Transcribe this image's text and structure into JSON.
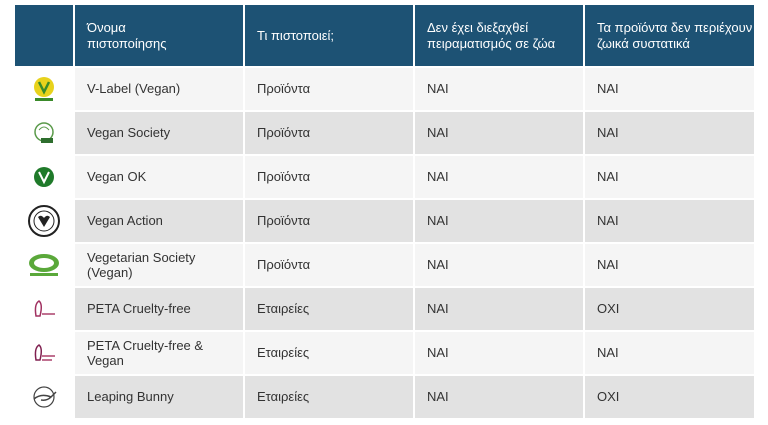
{
  "table": {
    "header": [
      "Όνομα\nπιστοποίησης",
      "Τι πιστοποιεί;",
      "Δεν έχει διεξαχθεί\nπειραματισμός σε ζώα",
      "Τα προϊόντα δεν περιέχουν\nζωικά συστατικά"
    ],
    "rows": [
      [
        "V-Label (Vegan)",
        "Προϊόντα",
        "ΝΑΙ",
        "ΝΑΙ"
      ],
      [
        "Vegan Society",
        "Προϊόντα",
        "ΝΑΙ",
        "ΝΑΙ"
      ],
      [
        "Vegan OK",
        "Προϊόντα",
        "ΝΑΙ",
        "ΝΑΙ"
      ],
      [
        "Vegan Action",
        "Προϊόντα",
        "ΝΑΙ",
        "ΝΑΙ"
      ],
      [
        "Vegetarian Society (Vegan)",
        "Προϊόντα",
        "ΝΑΙ",
        "ΝΑΙ"
      ],
      [
        "PETA Cruelty-free",
        "Εταιρείες",
        "ΝΑΙ",
        "ΟΧΙ"
      ],
      [
        "PETA Cruelty-free & Vegan",
        "Εταιρείες",
        "ΝΑΙ",
        "ΝΑΙ"
      ],
      [
        "Leaping Bunny",
        "Εταιρείες",
        "ΝΑΙ",
        "ΟΧΙ"
      ]
    ]
  }
}
